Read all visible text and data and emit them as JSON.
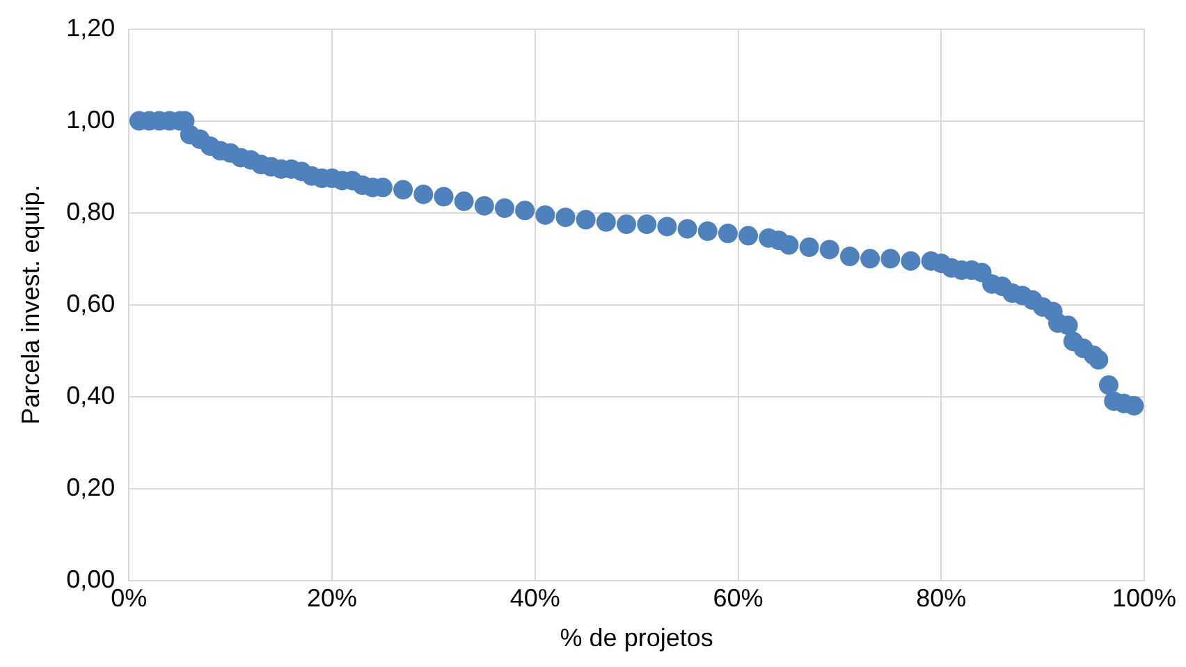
{
  "chart_data": {
    "type": "scatter",
    "xlabel": "% de projetos",
    "ylabel": "Parcela invest. equip.",
    "marker": "circle",
    "grid": true,
    "legend": false,
    "xlim": [
      0,
      100
    ],
    "xticks": [
      {
        "value": 0,
        "label": "0%"
      },
      {
        "value": 20,
        "label": "20%"
      },
      {
        "value": 40,
        "label": "40%"
      },
      {
        "value": 60,
        "label": "60%"
      },
      {
        "value": 80,
        "label": "80%"
      },
      {
        "value": 100,
        "label": "100%"
      }
    ],
    "ylim": [
      0,
      1.2
    ],
    "yticks": [
      {
        "value": 0,
        "label": "0,00"
      },
      {
        "value": 0.2,
        "label": "0,20"
      },
      {
        "value": 0.4,
        "label": "0,40"
      },
      {
        "value": 0.6,
        "label": "0,60"
      },
      {
        "value": 0.8,
        "label": "0,80"
      },
      {
        "value": 1,
        "label": "1,00"
      },
      {
        "value": 1.2,
        "label": "1,20"
      }
    ],
    "series": [
      {
        "color": "#4f81bd",
        "x": [
          1,
          2,
          3,
          4,
          5,
          5.5,
          6,
          7,
          8,
          9,
          10,
          11,
          12,
          13,
          14,
          15,
          16,
          17,
          18,
          19,
          20,
          21,
          22,
          23,
          24,
          25,
          27,
          29,
          31,
          33,
          35,
          37,
          39,
          41,
          43,
          45,
          47,
          49,
          51,
          53,
          55,
          57,
          59,
          61,
          63,
          64,
          65,
          67,
          69,
          71,
          73,
          75,
          77,
          79,
          80,
          81,
          82,
          83,
          84,
          85,
          86,
          87,
          88,
          89,
          90,
          91,
          91.5,
          92.5,
          93,
          94,
          95,
          95.5,
          96.5,
          97,
          98,
          99
        ],
        "values": [
          1,
          1,
          1,
          1,
          1,
          1,
          0.97,
          0.96,
          0.945,
          0.935,
          0.93,
          0.92,
          0.915,
          0.905,
          0.9,
          0.895,
          0.895,
          0.89,
          0.88,
          0.875,
          0.875,
          0.87,
          0.87,
          0.86,
          0.855,
          0.855,
          0.85,
          0.84,
          0.835,
          0.825,
          0.815,
          0.81,
          0.805,
          0.795,
          0.79,
          0.785,
          0.78,
          0.775,
          0.775,
          0.77,
          0.765,
          0.76,
          0.755,
          0.75,
          0.745,
          0.74,
          0.73,
          0.725,
          0.72,
          0.705,
          0.7,
          0.7,
          0.695,
          0.695,
          0.69,
          0.68,
          0.675,
          0.675,
          0.67,
          0.645,
          0.64,
          0.625,
          0.62,
          0.61,
          0.595,
          0.585,
          0.56,
          0.555,
          0.52,
          0.505,
          0.49,
          0.48,
          0.425,
          0.39,
          0.385,
          0.38
        ]
      }
    ]
  }
}
